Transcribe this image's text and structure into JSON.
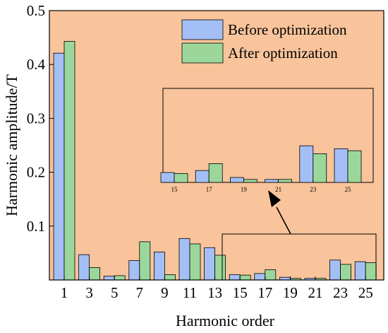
{
  "colors": {
    "background": "#f9c49b",
    "before": "#a4bff5",
    "after": "#9bd79b",
    "edge": "#000000"
  },
  "chart_data": {
    "type": "bar",
    "xlabel": "Harmonic order",
    "ylabel": "Harmonic amplitude/T",
    "ylim": [
      0,
      0.5
    ],
    "yticks": [
      0.1,
      0.2,
      0.3,
      0.4,
      0.5
    ],
    "yticklabels": [
      "0.1",
      "0.2",
      "0.3",
      "0.4",
      "0.5"
    ],
    "categories": [
      "1",
      "3",
      "5",
      "7",
      "9",
      "11",
      "13",
      "15",
      "17",
      "19",
      "21",
      "23",
      "25"
    ],
    "series": [
      {
        "name": "Before optimization",
        "values": [
          0.421,
          0.047,
          0.007,
          0.036,
          0.052,
          0.077,
          0.06,
          0.01,
          0.012,
          0.005,
          0.003,
          0.037,
          0.034
        ]
      },
      {
        "name": "After optimization",
        "values": [
          0.443,
          0.023,
          0.008,
          0.071,
          0.01,
          0.067,
          0.046,
          0.009,
          0.019,
          0.003,
          0.003,
          0.029,
          0.032
        ]
      }
    ],
    "legend_position": "top-right",
    "inset": {
      "categories": [
        "15",
        "17",
        "19",
        "21",
        "23",
        "25"
      ],
      "source_categories_from": "15",
      "annotation": "arrow from zoomed region to inset"
    }
  }
}
